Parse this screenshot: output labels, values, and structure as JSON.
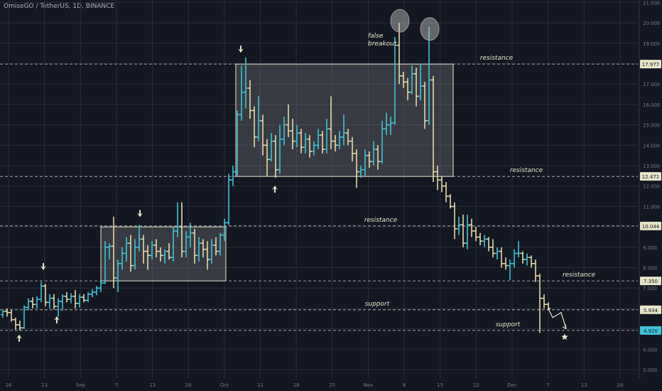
{
  "header": {
    "title": "OmiseGO / TetherUS, 1D, BINANCE"
  },
  "colors": {
    "bg": "#131722",
    "up": "#3ec3d6",
    "down": "#e6d9a8",
    "grid": "#2a2e39",
    "level": "#c9c9c9",
    "box": "#4c4f57",
    "annotation": "#e8e6c9",
    "axis_text": "#787b86",
    "tag_bg": "#e6e4c8",
    "tag_accent_bg": "#3ec3d6"
  },
  "chart_data": {
    "type": "ohlc",
    "title": "OmiseGO / TetherUS, 1D, BINANCE",
    "x_ticks": [
      "16",
      "23",
      "Sep",
      "7",
      "13",
      "20",
      "Oct",
      "11",
      "18",
      "25",
      "Nov",
      "8",
      "15",
      "22",
      "Dec",
      "7",
      "13",
      "20"
    ],
    "y_ticks": [
      "3.000",
      "4.000",
      "5.000",
      "6.000",
      "7.000",
      "8.000",
      "9.000",
      "10.000",
      "11.000",
      "12.000",
      "13.000",
      "14.000",
      "15.000",
      "16.000",
      "17.000",
      "18.000",
      "19.000",
      "20.000",
      "21.000"
    ],
    "y_range": [
      2.9,
      21.0
    ],
    "price_tags": [
      {
        "label": "17.977",
        "value": 17.977,
        "accent": false
      },
      {
        "label": "12.471",
        "value": 12.471,
        "accent": false
      },
      {
        "label": "10.044",
        "value": 10.044,
        "accent": false
      },
      {
        "label": "7.350",
        "value": 7.35,
        "accent": false
      },
      {
        "label": "5.934",
        "value": 5.934,
        "accent": false
      },
      {
        "label": "4.920",
        "value": 4.92,
        "accent": true
      }
    ],
    "levels": [
      {
        "value": 17.977,
        "label": "resistance"
      },
      {
        "value": 12.471,
        "label": "resistance"
      },
      {
        "value": 10.044,
        "label": "resistance"
      },
      {
        "value": 7.35,
        "label": "resistance"
      },
      {
        "value": 5.934,
        "label": "support"
      },
      {
        "value": 4.92,
        "label": "support"
      }
    ],
    "annotations": {
      "false_breakout": [
        "false",
        "breakout"
      ]
    },
    "ranges": [
      {
        "x0": 142,
        "x1": 318,
        "low": 7.35,
        "high": 10.0
      },
      {
        "x0": 332,
        "x1": 638,
        "low": 12.471,
        "high": 17.977
      }
    ],
    "circles": [
      {
        "x": 563,
        "value": 20.1
      },
      {
        "x": 605,
        "value": 19.7
      }
    ],
    "arrows": [
      {
        "x": 61,
        "value": 7.95,
        "dir": "down"
      },
      {
        "x": 197,
        "value": 10.55,
        "dir": "down"
      },
      {
        "x": 339,
        "value": 18.6,
        "dir": "down"
      },
      {
        "x": 27,
        "value": 4.65,
        "dir": "up"
      },
      {
        "x": 80,
        "value": 5.55,
        "dir": "up"
      },
      {
        "x": 387,
        "value": 11.95,
        "dir": "up"
      }
    ],
    "projection": [
      [
        772,
        6.0
      ],
      [
        778,
        5.55
      ],
      [
        790,
        5.8
      ],
      [
        797,
        5.0
      ]
    ],
    "target": {
      "x": 795,
      "value": 4.6
    },
    "bars": [
      {
        "x": 4,
        "o": 5.7,
        "h": 5.95,
        "l": 5.55,
        "c": 5.85
      },
      {
        "x": 10,
        "o": 5.85,
        "h": 6.0,
        "l": 5.6,
        "c": 5.8
      },
      {
        "x": 16,
        "o": 5.8,
        "h": 5.95,
        "l": 5.35,
        "c": 5.45
      },
      {
        "x": 22,
        "o": 5.45,
        "h": 5.55,
        "l": 4.95,
        "c": 5.2
      },
      {
        "x": 28,
        "o": 5.2,
        "h": 5.4,
        "l": 4.92,
        "c": 5.05
      },
      {
        "x": 34,
        "o": 5.05,
        "h": 6.15,
        "l": 5.0,
        "c": 6.05
      },
      {
        "x": 40,
        "o": 6.05,
        "h": 6.5,
        "l": 5.9,
        "c": 6.35
      },
      {
        "x": 46,
        "o": 6.35,
        "h": 6.55,
        "l": 6.0,
        "c": 6.2
      },
      {
        "x": 52,
        "o": 6.2,
        "h": 6.6,
        "l": 6.0,
        "c": 6.45
      },
      {
        "x": 58,
        "o": 6.45,
        "h": 7.3,
        "l": 6.3,
        "c": 7.1
      },
      {
        "x": 64,
        "o": 7.1,
        "h": 7.2,
        "l": 6.1,
        "c": 6.3
      },
      {
        "x": 70,
        "o": 6.3,
        "h": 6.7,
        "l": 6.0,
        "c": 6.5
      },
      {
        "x": 76,
        "o": 6.5,
        "h": 6.7,
        "l": 5.95,
        "c": 6.1
      },
      {
        "x": 82,
        "o": 6.1,
        "h": 6.5,
        "l": 5.6,
        "c": 6.35
      },
      {
        "x": 88,
        "o": 6.35,
        "h": 6.7,
        "l": 5.9,
        "c": 6.6
      },
      {
        "x": 94,
        "o": 6.6,
        "h": 6.8,
        "l": 6.3,
        "c": 6.45
      },
      {
        "x": 100,
        "o": 6.45,
        "h": 6.75,
        "l": 6.25,
        "c": 6.6
      },
      {
        "x": 106,
        "o": 6.6,
        "h": 6.9,
        "l": 6.0,
        "c": 6.25
      },
      {
        "x": 112,
        "o": 6.25,
        "h": 6.7,
        "l": 6.05,
        "c": 6.55
      },
      {
        "x": 118,
        "o": 6.55,
        "h": 6.7,
        "l": 6.3,
        "c": 6.4
      },
      {
        "x": 124,
        "o": 6.4,
        "h": 6.8,
        "l": 6.3,
        "c": 6.7
      },
      {
        "x": 130,
        "o": 6.7,
        "h": 6.95,
        "l": 6.55,
        "c": 6.8
      },
      {
        "x": 136,
        "o": 6.8,
        "h": 7.1,
        "l": 6.65,
        "c": 7.0
      },
      {
        "x": 142,
        "o": 7.0,
        "h": 7.4,
        "l": 6.8,
        "c": 7.25
      },
      {
        "x": 148,
        "o": 7.25,
        "h": 9.3,
        "l": 7.2,
        "c": 9.0
      },
      {
        "x": 154,
        "o": 9.0,
        "h": 9.2,
        "l": 8.4,
        "c": 9.05
      },
      {
        "x": 160,
        "o": 9.05,
        "h": 10.5,
        "l": 7.0,
        "c": 7.5
      },
      {
        "x": 166,
        "o": 7.5,
        "h": 8.4,
        "l": 6.8,
        "c": 8.2
      },
      {
        "x": 172,
        "o": 8.2,
        "h": 9.0,
        "l": 7.9,
        "c": 8.7
      },
      {
        "x": 178,
        "o": 8.7,
        "h": 9.5,
        "l": 8.3,
        "c": 9.2
      },
      {
        "x": 184,
        "o": 9.2,
        "h": 9.6,
        "l": 7.8,
        "c": 8.1
      },
      {
        "x": 190,
        "o": 8.1,
        "h": 9.4,
        "l": 7.9,
        "c": 9.0
      },
      {
        "x": 196,
        "o": 9.0,
        "h": 10.1,
        "l": 8.8,
        "c": 9.4
      },
      {
        "x": 202,
        "o": 9.4,
        "h": 9.6,
        "l": 8.2,
        "c": 8.8
      },
      {
        "x": 208,
        "o": 8.8,
        "h": 9.1,
        "l": 7.9,
        "c": 8.6
      },
      {
        "x": 214,
        "o": 8.6,
        "h": 9.3,
        "l": 8.4,
        "c": 9.1
      },
      {
        "x": 220,
        "o": 9.1,
        "h": 9.4,
        "l": 8.5,
        "c": 8.8
      },
      {
        "x": 226,
        "o": 8.8,
        "h": 9.0,
        "l": 8.3,
        "c": 8.6
      },
      {
        "x": 232,
        "o": 8.6,
        "h": 8.9,
        "l": 8.2,
        "c": 8.8
      },
      {
        "x": 238,
        "o": 8.8,
        "h": 9.2,
        "l": 8.4,
        "c": 8.5
      },
      {
        "x": 244,
        "o": 8.5,
        "h": 10.0,
        "l": 8.3,
        "c": 9.8
      },
      {
        "x": 250,
        "o": 9.8,
        "h": 11.2,
        "l": 9.5,
        "c": 10.0
      },
      {
        "x": 256,
        "o": 10.0,
        "h": 11.2,
        "l": 8.5,
        "c": 8.8
      },
      {
        "x": 262,
        "o": 8.8,
        "h": 9.8,
        "l": 8.5,
        "c": 9.5
      },
      {
        "x": 268,
        "o": 9.5,
        "h": 10.2,
        "l": 9.0,
        "c": 9.7
      },
      {
        "x": 274,
        "o": 9.7,
        "h": 9.9,
        "l": 8.2,
        "c": 8.6
      },
      {
        "x": 280,
        "o": 8.6,
        "h": 9.5,
        "l": 8.3,
        "c": 9.2
      },
      {
        "x": 286,
        "o": 9.2,
        "h": 9.4,
        "l": 8.5,
        "c": 8.9
      },
      {
        "x": 292,
        "o": 8.9,
        "h": 9.3,
        "l": 7.9,
        "c": 8.4
      },
      {
        "x": 298,
        "o": 8.4,
        "h": 9.4,
        "l": 8.2,
        "c": 9.1
      },
      {
        "x": 304,
        "o": 9.1,
        "h": 9.5,
        "l": 8.6,
        "c": 8.8
      },
      {
        "x": 310,
        "o": 8.8,
        "h": 9.7,
        "l": 8.6,
        "c": 9.6
      },
      {
        "x": 316,
        "o": 9.6,
        "h": 10.4,
        "l": 9.3,
        "c": 10.2
      },
      {
        "x": 322,
        "o": 10.2,
        "h": 12.6,
        "l": 10.1,
        "c": 12.3
      },
      {
        "x": 328,
        "o": 12.3,
        "h": 13.0,
        "l": 12.0,
        "c": 12.7
      },
      {
        "x": 334,
        "o": 12.7,
        "h": 15.7,
        "l": 12.5,
        "c": 15.5
      },
      {
        "x": 340,
        "o": 15.5,
        "h": 17.9,
        "l": 15.2,
        "c": 16.6
      },
      {
        "x": 346,
        "o": 16.6,
        "h": 18.3,
        "l": 15.8,
        "c": 16.8
      },
      {
        "x": 352,
        "o": 16.8,
        "h": 17.2,
        "l": 15.3,
        "c": 15.7
      },
      {
        "x": 358,
        "o": 15.7,
        "h": 15.9,
        "l": 13.9,
        "c": 14.4
      },
      {
        "x": 364,
        "o": 14.4,
        "h": 16.4,
        "l": 14.2,
        "c": 15.2
      },
      {
        "x": 370,
        "o": 15.2,
        "h": 15.5,
        "l": 13.5,
        "c": 14.0
      },
      {
        "x": 376,
        "o": 14.0,
        "h": 14.3,
        "l": 12.5,
        "c": 13.3
      },
      {
        "x": 382,
        "o": 13.3,
        "h": 14.6,
        "l": 13.2,
        "c": 14.2
      },
      {
        "x": 388,
        "o": 14.2,
        "h": 14.5,
        "l": 12.4,
        "c": 12.8
      },
      {
        "x": 394,
        "o": 12.8,
        "h": 15.0,
        "l": 12.6,
        "c": 14.3
      },
      {
        "x": 400,
        "o": 14.3,
        "h": 15.4,
        "l": 14.0,
        "c": 15.0
      },
      {
        "x": 406,
        "o": 15.0,
        "h": 16.0,
        "l": 14.4,
        "c": 14.7
      },
      {
        "x": 412,
        "o": 14.7,
        "h": 15.3,
        "l": 13.8,
        "c": 14.2
      },
      {
        "x": 418,
        "o": 14.2,
        "h": 15.0,
        "l": 13.9,
        "c": 14.6
      },
      {
        "x": 424,
        "o": 14.6,
        "h": 14.8,
        "l": 13.6,
        "c": 13.9
      },
      {
        "x": 430,
        "o": 13.9,
        "h": 14.6,
        "l": 13.6,
        "c": 14.3
      },
      {
        "x": 436,
        "o": 14.3,
        "h": 14.5,
        "l": 13.4,
        "c": 13.7
      },
      {
        "x": 442,
        "o": 13.7,
        "h": 14.2,
        "l": 13.5,
        "c": 14.0
      },
      {
        "x": 448,
        "o": 14.0,
        "h": 14.8,
        "l": 13.8,
        "c": 14.5
      },
      {
        "x": 454,
        "o": 14.5,
        "h": 14.7,
        "l": 13.6,
        "c": 13.8
      },
      {
        "x": 460,
        "o": 13.8,
        "h": 15.3,
        "l": 13.6,
        "c": 14.8
      },
      {
        "x": 466,
        "o": 14.8,
        "h": 16.4,
        "l": 13.8,
        "c": 14.2
      },
      {
        "x": 472,
        "o": 14.2,
        "h": 14.5,
        "l": 13.7,
        "c": 14.0
      },
      {
        "x": 478,
        "o": 14.0,
        "h": 14.7,
        "l": 13.8,
        "c": 14.4
      },
      {
        "x": 484,
        "o": 14.4,
        "h": 15.5,
        "l": 14.0,
        "c": 14.6
      },
      {
        "x": 490,
        "o": 14.6,
        "h": 14.8,
        "l": 14.0,
        "c": 14.2
      },
      {
        "x": 496,
        "o": 14.2,
        "h": 14.4,
        "l": 13.2,
        "c": 13.6
      },
      {
        "x": 502,
        "o": 13.6,
        "h": 13.8,
        "l": 11.9,
        "c": 12.7
      },
      {
        "x": 508,
        "o": 12.7,
        "h": 13.0,
        "l": 12.4,
        "c": 12.8
      },
      {
        "x": 514,
        "o": 12.8,
        "h": 13.8,
        "l": 12.5,
        "c": 13.5
      },
      {
        "x": 520,
        "o": 13.5,
        "h": 13.7,
        "l": 12.9,
        "c": 13.2
      },
      {
        "x": 526,
        "o": 13.2,
        "h": 14.2,
        "l": 13.0,
        "c": 13.8
      },
      {
        "x": 532,
        "o": 13.8,
        "h": 14.0,
        "l": 12.8,
        "c": 13.2
      },
      {
        "x": 538,
        "o": 13.2,
        "h": 15.2,
        "l": 13.1,
        "c": 14.8
      },
      {
        "x": 544,
        "o": 14.8,
        "h": 15.6,
        "l": 14.5,
        "c": 15.0
      },
      {
        "x": 550,
        "o": 15.0,
        "h": 15.4,
        "l": 14.5,
        "c": 15.1
      },
      {
        "x": 556,
        "o": 15.1,
        "h": 19.3,
        "l": 15.0,
        "c": 18.9
      },
      {
        "x": 562,
        "o": 18.9,
        "h": 20.0,
        "l": 17.0,
        "c": 17.4
      },
      {
        "x": 568,
        "o": 17.4,
        "h": 17.6,
        "l": 16.8,
        "c": 17.1
      },
      {
        "x": 574,
        "o": 17.1,
        "h": 17.3,
        "l": 16.2,
        "c": 16.6
      },
      {
        "x": 580,
        "o": 16.6,
        "h": 17.9,
        "l": 16.5,
        "c": 17.5
      },
      {
        "x": 586,
        "o": 17.5,
        "h": 17.8,
        "l": 15.9,
        "c": 16.4
      },
      {
        "x": 592,
        "o": 16.4,
        "h": 18.0,
        "l": 16.2,
        "c": 16.9
      },
      {
        "x": 598,
        "o": 16.9,
        "h": 17.1,
        "l": 14.8,
        "c": 15.2
      },
      {
        "x": 604,
        "o": 15.2,
        "h": 19.8,
        "l": 15.0,
        "c": 17.2
      },
      {
        "x": 610,
        "o": 17.2,
        "h": 17.4,
        "l": 12.2,
        "c": 12.7
      },
      {
        "x": 616,
        "o": 12.7,
        "h": 13.0,
        "l": 11.8,
        "c": 12.3
      },
      {
        "x": 622,
        "o": 12.3,
        "h": 12.5,
        "l": 11.7,
        "c": 12.0
      },
      {
        "x": 628,
        "o": 12.0,
        "h": 12.2,
        "l": 11.2,
        "c": 11.5
      },
      {
        "x": 634,
        "o": 11.5,
        "h": 11.6,
        "l": 10.9,
        "c": 11.0
      },
      {
        "x": 640,
        "o": 11.0,
        "h": 11.2,
        "l": 9.4,
        "c": 9.9
      },
      {
        "x": 646,
        "o": 9.9,
        "h": 10.5,
        "l": 9.6,
        "c": 10.1
      },
      {
        "x": 652,
        "o": 10.1,
        "h": 10.6,
        "l": 9.0,
        "c": 9.2
      },
      {
        "x": 658,
        "o": 9.2,
        "h": 10.6,
        "l": 8.9,
        "c": 10.1
      },
      {
        "x": 664,
        "o": 10.1,
        "h": 10.4,
        "l": 9.5,
        "c": 9.8
      },
      {
        "x": 670,
        "o": 9.8,
        "h": 10.0,
        "l": 9.3,
        "c": 9.5
      },
      {
        "x": 676,
        "o": 9.5,
        "h": 9.7,
        "l": 9.1,
        "c": 9.3
      },
      {
        "x": 682,
        "o": 9.3,
        "h": 9.6,
        "l": 9.0,
        "c": 9.4
      },
      {
        "x": 688,
        "o": 9.4,
        "h": 9.5,
        "l": 8.8,
        "c": 9.0
      },
      {
        "x": 694,
        "o": 9.0,
        "h": 9.4,
        "l": 8.5,
        "c": 8.7
      },
      {
        "x": 700,
        "o": 8.7,
        "h": 9.0,
        "l": 8.4,
        "c": 8.8
      },
      {
        "x": 706,
        "o": 8.8,
        "h": 9.0,
        "l": 8.0,
        "c": 8.2
      },
      {
        "x": 712,
        "o": 8.2,
        "h": 8.5,
        "l": 7.9,
        "c": 8.1
      },
      {
        "x": 718,
        "o": 8.1,
        "h": 8.4,
        "l": 7.4,
        "c": 8.2
      },
      {
        "x": 724,
        "o": 8.2,
        "h": 8.9,
        "l": 8.0,
        "c": 8.7
      },
      {
        "x": 730,
        "o": 8.7,
        "h": 9.3,
        "l": 8.5,
        "c": 8.7
      },
      {
        "x": 736,
        "o": 8.7,
        "h": 8.8,
        "l": 8.2,
        "c": 8.4
      },
      {
        "x": 742,
        "o": 8.4,
        "h": 8.7,
        "l": 8.1,
        "c": 8.5
      },
      {
        "x": 748,
        "o": 8.5,
        "h": 8.6,
        "l": 8.0,
        "c": 8.2
      },
      {
        "x": 754,
        "o": 8.2,
        "h": 8.4,
        "l": 7.3,
        "c": 7.6
      },
      {
        "x": 760,
        "o": 7.6,
        "h": 7.7,
        "l": 4.8,
        "c": 6.5
      },
      {
        "x": 766,
        "o": 6.5,
        "h": 6.7,
        "l": 6.0,
        "c": 6.2
      },
      {
        "x": 772,
        "o": 6.2,
        "h": 6.3,
        "l": 5.9,
        "c": 6.0
      }
    ]
  }
}
